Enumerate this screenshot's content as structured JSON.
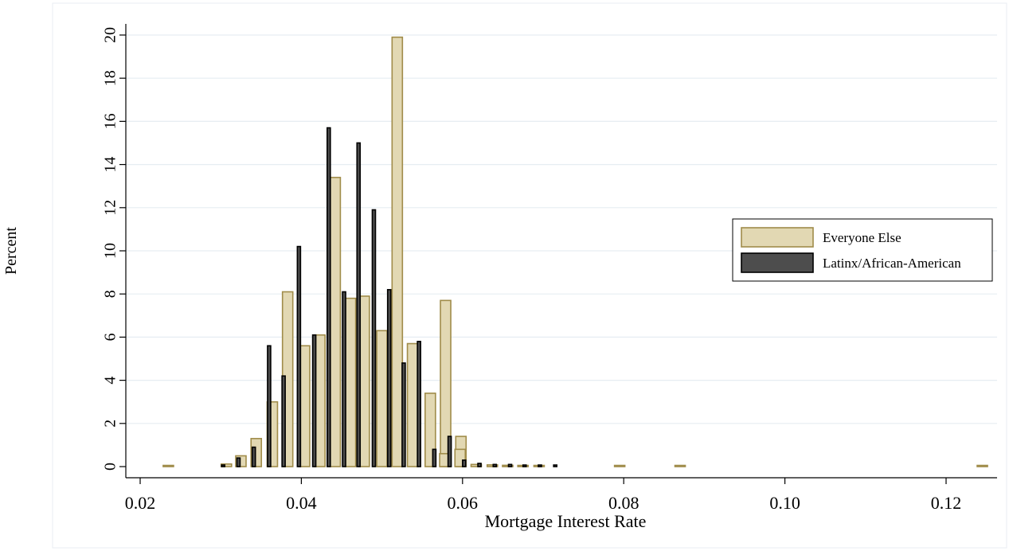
{
  "chart_data": {
    "type": "bar",
    "xlabel": "Mortgage Interest Rate",
    "ylabel": "Percent",
    "xlim": [
      0.02,
      0.126
    ],
    "ylim": [
      0,
      20
    ],
    "x_ticks": [
      0.02,
      0.04,
      0.06,
      0.08,
      0.1,
      0.12
    ],
    "x_tick_labels": [
      "0.02",
      "0.04",
      "0.06",
      "0.08",
      "0.10",
      "0.12"
    ],
    "y_ticks": [
      0,
      2,
      4,
      6,
      8,
      10,
      12,
      14,
      16,
      18,
      20
    ],
    "y_tick_labels": [
      "0",
      "2",
      "4",
      "6",
      "8",
      "10",
      "12",
      "14",
      "16",
      "18",
      "20"
    ],
    "grid": true,
    "legend_position": "right",
    "colors": {
      "everyone_fill": "#e2d8b3",
      "everyone_edge": "#a08c4a",
      "latinx_fill": "#4d4d4d",
      "latinx_edge": "#000000"
    },
    "series": [
      {
        "name": "Everyone Else",
        "bar_width": 0.003,
        "points": [
          {
            "x": 0.0235,
            "y": 0.05
          },
          {
            "x": 0.0307,
            "y": 0.12
          },
          {
            "x": 0.0325,
            "y": 0.5
          },
          {
            "x": 0.0344,
            "y": 1.3
          },
          {
            "x": 0.0364,
            "y": 3.0
          },
          {
            "x": 0.0383,
            "y": 8.1
          },
          {
            "x": 0.0404,
            "y": 5.6
          },
          {
            "x": 0.0423,
            "y": 6.1
          },
          {
            "x": 0.0442,
            "y": 13.4
          },
          {
            "x": 0.0461,
            "y": 7.8
          },
          {
            "x": 0.0478,
            "y": 7.9
          },
          {
            "x": 0.05,
            "y": 6.3
          },
          {
            "x": 0.0519,
            "y": 19.9
          },
          {
            "x": 0.0538,
            "y": 5.7
          },
          {
            "x": 0.056,
            "y": 3.4
          },
          {
            "x": 0.0579,
            "y": 7.7
          },
          {
            "x": 0.0598,
            "y": 1.4
          },
          {
            "x": 0.0578,
            "y": 0.6
          },
          {
            "x": 0.0597,
            "y": 0.8
          },
          {
            "x": 0.0617,
            "y": 0.1
          },
          {
            "x": 0.0637,
            "y": 0.08
          },
          {
            "x": 0.0656,
            "y": 0.06
          },
          {
            "x": 0.0675,
            "y": 0.04
          },
          {
            "x": 0.0695,
            "y": 0.02
          },
          {
            "x": 0.0795,
            "y": 0.03
          },
          {
            "x": 0.087,
            "y": 0.03
          },
          {
            "x": 0.1245,
            "y": 0.03
          }
        ]
      },
      {
        "name": "Latinx/African-American",
        "bar_width": 0.0004,
        "points": [
          {
            "x": 0.0303,
            "y": 0.05
          },
          {
            "x": 0.0322,
            "y": 0.4
          },
          {
            "x": 0.0341,
            "y": 0.9
          },
          {
            "x": 0.036,
            "y": 5.6
          },
          {
            "x": 0.0378,
            "y": 4.2
          },
          {
            "x": 0.0397,
            "y": 10.2
          },
          {
            "x": 0.0416,
            "y": 6.1
          },
          {
            "x": 0.0434,
            "y": 15.7
          },
          {
            "x": 0.0453,
            "y": 8.1
          },
          {
            "x": 0.0471,
            "y": 15.0
          },
          {
            "x": 0.049,
            "y": 11.9
          },
          {
            "x": 0.0509,
            "y": 8.2
          },
          {
            "x": 0.0527,
            "y": 4.8
          },
          {
            "x": 0.0546,
            "y": 5.8
          },
          {
            "x": 0.0565,
            "y": 0.8
          },
          {
            "x": 0.0584,
            "y": 1.4
          },
          {
            "x": 0.0602,
            "y": 0.3
          },
          {
            "x": 0.0621,
            "y": 0.15
          },
          {
            "x": 0.064,
            "y": 0.1
          },
          {
            "x": 0.0659,
            "y": 0.1
          },
          {
            "x": 0.0677,
            "y": 0.05
          },
          {
            "x": 0.0696,
            "y": 0.05
          },
          {
            "x": 0.0715,
            "y": 0.05
          }
        ]
      }
    ]
  }
}
